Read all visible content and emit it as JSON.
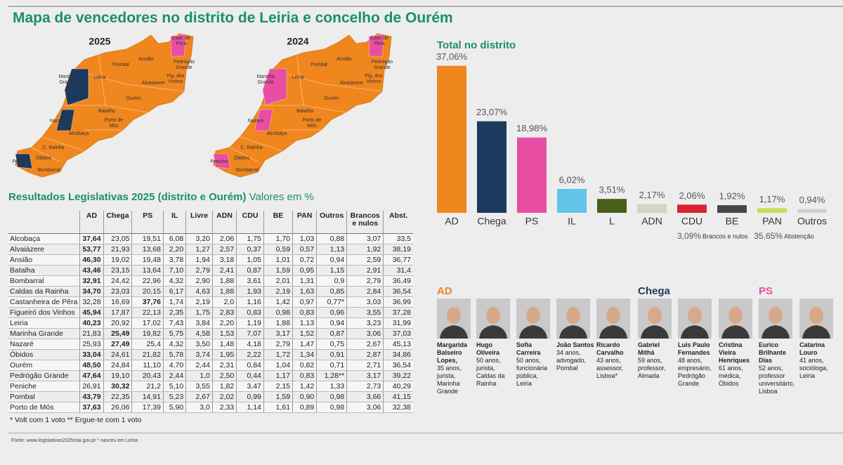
{
  "header": {
    "title": "Mapa de vencedores no distrito de Leiria e concelho de Ourém"
  },
  "maps": [
    {
      "year": "2025",
      "regions": [
        {
          "name": "Cast. de Pera",
          "color": "#e84ea3"
        },
        {
          "name": "Pedrógão Grande",
          "color": "#f0861e"
        },
        {
          "name": "Ansião",
          "color": "#f0861e"
        },
        {
          "name": "Pombal",
          "color": "#f0861e"
        },
        {
          "name": "Fig. dos Vinhos",
          "color": "#f0861e"
        },
        {
          "name": "Alvaiázere",
          "color": "#f0861e"
        },
        {
          "name": "Leiria",
          "color": "#f0861e"
        },
        {
          "name": "Marinha Grande",
          "color": "#1c3a5e"
        },
        {
          "name": "Ourém",
          "color": "#f0861e"
        },
        {
          "name": "Batalha",
          "color": "#f0861e"
        },
        {
          "name": "Nazaré",
          "color": "#1c3a5e"
        },
        {
          "name": "Porto de Mós",
          "color": "#f0861e"
        },
        {
          "name": "Alcobaça",
          "color": "#f0861e"
        },
        {
          "name": "C. Rainha",
          "color": "#f0861e"
        },
        {
          "name": "Óbidos",
          "color": "#f0861e"
        },
        {
          "name": "Peniche",
          "color": "#1c3a5e"
        },
        {
          "name": "Bombarral",
          "color": "#f0861e"
        }
      ]
    },
    {
      "year": "2024",
      "regions": [
        {
          "name": "Cast. de Pera",
          "color": "#e84ea3"
        },
        {
          "name": "Pedrógão Grande",
          "color": "#f0861e"
        },
        {
          "name": "Ansião",
          "color": "#f0861e"
        },
        {
          "name": "Pombal",
          "color": "#f0861e"
        },
        {
          "name": "Fig. dos Vinhos",
          "color": "#f0861e"
        },
        {
          "name": "Alvaiázere",
          "color": "#f0861e"
        },
        {
          "name": "Leiria",
          "color": "#f0861e"
        },
        {
          "name": "Marinha Grande",
          "color": "#e84ea3"
        },
        {
          "name": "Ourém",
          "color": "#f0861e"
        },
        {
          "name": "Batalha",
          "color": "#f0861e"
        },
        {
          "name": "Nazaré",
          "color": "#e84ea3"
        },
        {
          "name": "Porto de Mós",
          "color": "#f0861e"
        },
        {
          "name": "Alcobaça",
          "color": "#f0861e"
        },
        {
          "name": "C. Rainha",
          "color": "#f0861e"
        },
        {
          "name": "Óbidos",
          "color": "#f0861e"
        },
        {
          "name": "Peniche",
          "color": "#e84ea3"
        },
        {
          "name": "Bombarral",
          "color": "#f0861e"
        }
      ]
    }
  ],
  "table": {
    "title": "Resultados Legislativas 2025 (distrito e Ourém)",
    "subtitle": "Valores em %",
    "columns": [
      "AD",
      "Chega",
      "PS",
      "IL",
      "Livre",
      "ADN",
      "CDU",
      "BE",
      "PAN",
      "Outros",
      "Brancos e nulos",
      "Abst."
    ],
    "rows": [
      {
        "name": "Alcobaça",
        "values": [
          "37,64",
          "23,05",
          "19,51",
          "6,08",
          "3,20",
          "2,06",
          "1,75",
          "1,70",
          "1,03",
          "0,88",
          "3,07",
          "33,5"
        ]
      },
      {
        "name": "Alvaiázere",
        "values": [
          "53,77",
          "21,93",
          "13,68",
          "2,20",
          "1,27",
          "2,57",
          "0,37",
          "0,59",
          "0,57",
          "1,13",
          "1,92",
          "38,19"
        ]
      },
      {
        "name": "Ansião",
        "values": [
          "46,30",
          "19,02",
          "19,48",
          "3,78",
          "1,94",
          "3,18",
          "1,05",
          "1,01",
          "0,72",
          "0,94",
          "2,59",
          "36,77"
        ]
      },
      {
        "name": "Batalha",
        "values": [
          "43,46",
          "23,15",
          "13,64",
          "7,10",
          "2,79",
          "2,41",
          "0,87",
          "1,59",
          "0,95",
          "1,15",
          "2,91",
          "31,4"
        ]
      },
      {
        "name": "Bombarral",
        "values": [
          "32,91",
          "24,42",
          "22,96",
          "4,32",
          "2,90",
          "1,88",
          "3,61",
          "2,01",
          "1,31",
          "0,9",
          "2,79",
          "36,49"
        ]
      },
      {
        "name": "Caldas da Rainha",
        "values": [
          "34,70",
          "23,03",
          "20,15",
          "6,17",
          "4,63",
          "1,88",
          "1,93",
          "2,19",
          "1,63",
          "0,85",
          "2,84",
          "36,54"
        ]
      },
      {
        "name": "Castanheira de Pêra",
        "values": [
          "32,28",
          "16,69",
          "37,76",
          "1,74",
          "2,19",
          "2,0",
          "1,16",
          "1,42",
          "0,97",
          "0,77*",
          "3,03",
          "36,99"
        ]
      },
      {
        "name": "Figueiró dos Vinhos",
        "values": [
          "45,94",
          "17,87",
          "22,13",
          "2,35",
          "1,75",
          "2,83",
          "0,83",
          "0,98",
          "0,83",
          "0,96",
          "3,55",
          "37,28"
        ]
      },
      {
        "name": "Leiria",
        "values": [
          "40,23",
          "20,92",
          "17,02",
          "7,43",
          "3,84",
          "2,20",
          "1,19",
          "1,88",
          "1,13",
          "0,94",
          "3,23",
          "31,99"
        ]
      },
      {
        "name": "Marinha Grande",
        "values": [
          "21,83",
          "25,49",
          "19,82",
          "5,75",
          "4,58",
          "1,53",
          "7,07",
          "3,17",
          "1,52",
          "0,87",
          "3,06",
          "37,03"
        ]
      },
      {
        "name": "Nazaré",
        "values": [
          "25,93",
          "27,49",
          "25,4",
          "4,32",
          "3,50",
          "1,48",
          "4,18",
          "2,79",
          "1,47",
          "0,75",
          "2,67",
          "45,13"
        ]
      },
      {
        "name": "Óbidos",
        "values": [
          "33,04",
          "24,61",
          "21,82",
          "5,78",
          "3,74",
          "1,95",
          "2,22",
          "1,72",
          "1,34",
          "0,91",
          "2,87",
          "34,86"
        ]
      },
      {
        "name": "Ourém",
        "values": [
          "48,50",
          "24,84",
          "11,10",
          "4,70",
          "2,44",
          "2,31",
          "0,84",
          "1,04",
          "0,82",
          "0,71",
          "2,71",
          "36,54"
        ]
      },
      {
        "name": "Pedrógão Grande",
        "values": [
          "47,64",
          "19,10",
          "20,43",
          "2,44",
          "1,0",
          "2,50",
          "0,44",
          "1,17",
          "0,83",
          "1,28**",
          "3,17",
          "39,22"
        ]
      },
      {
        "name": "Peniche",
        "values": [
          "26,91",
          "30,32",
          "21,2",
          "5,10",
          "3,55",
          "1,82",
          "3,47",
          "2,15",
          "1,42",
          "1,33",
          "2,73",
          "40,29"
        ]
      },
      {
        "name": "Pombal",
        "values": [
          "43,79",
          "22,35",
          "14,91",
          "5,23",
          "2,67",
          "2,02",
          "0,99",
          "1,59",
          "0,90",
          "0,98",
          "3,66",
          "41,15"
        ]
      },
      {
        "name": "Porto de Mós",
        "values": [
          "37,63",
          "26,06",
          "17,39",
          "5,90",
          "3,0",
          "2,33",
          "1,14",
          "1,61",
          "0,89",
          "0,98",
          "3,06",
          "32,38"
        ]
      }
    ],
    "footnote": "* Volt com 1 voto ** Ergue-te com 1 voto"
  },
  "chart_data": {
    "type": "bar",
    "title": "Total no distrito",
    "categories": [
      "AD",
      "Chega",
      "PS",
      "IL",
      "L",
      "ADN",
      "CDU",
      "BE",
      "PAN",
      "Outros"
    ],
    "values": [
      37.06,
      23.07,
      18.98,
      6.02,
      3.51,
      2.17,
      2.06,
      1.92,
      1.17,
      0.94
    ],
    "value_labels": [
      "37,06%",
      "23,07%",
      "18,98%",
      "6,02%",
      "3,51%",
      "2,17%",
      "2,06%",
      "1,92%",
      "1,17%",
      "0,94%"
    ],
    "colors": [
      "#f0861e",
      "#1c3a5e",
      "#e84ea3",
      "#62c4e8",
      "#4a5e1c",
      "#d8d2c4",
      "#d9232e",
      "#454545",
      "#c8dc5a",
      "#d0d0d0"
    ],
    "annotations": [
      {
        "value": 3.09,
        "label": "3,09%",
        "text": "Brancos e nulos"
      },
      {
        "value": 35.65,
        "label": "35,65%",
        "text": "Abstenção"
      }
    ]
  },
  "candidates": [
    {
      "party": "AD",
      "color": "#f0861e",
      "people": [
        {
          "name": "Margarida Balseiro Lopes,",
          "info": "35 anos, jurista, Marinha Grande"
        },
        {
          "name": "Hugo Oliveira",
          "info": "50 anos, jurista, Caldas da Rainha"
        },
        {
          "name": "Sofia Carreira",
          "info": "50 anos, funcionária pública, Leiria"
        },
        {
          "name": "João Santos",
          "info": "34 anos, advogado, Pombal"
        },
        {
          "name": "Ricardo Carvalho",
          "info": "43 anos, assessor, Lisboa*"
        }
      ]
    },
    {
      "party": "Chega",
      "color": "#1c3a5e",
      "people": [
        {
          "name": "Gabriel Mithá",
          "info": "59 anos, professor, Almada"
        },
        {
          "name": "Luís Paulo Fernandes",
          "info": "48 anos, empresário, Pedrógão Grande"
        },
        {
          "name": "Cristina Vieira Henriques",
          "info": "61 anos, médica, Óbidos"
        }
      ]
    },
    {
      "party": "PS",
      "color": "#e84ea3",
      "people": [
        {
          "name": "Eurico Brilhante Dias",
          "info": "52 anos, professor universitário, Lisboa"
        },
        {
          "name": "Catarina Louro",
          "info": "41 anos, socióloga, Leiria"
        }
      ]
    }
  ],
  "source": "Fonte: www.legislativas2025mai.gov.pt  * nasceu em Leiria"
}
